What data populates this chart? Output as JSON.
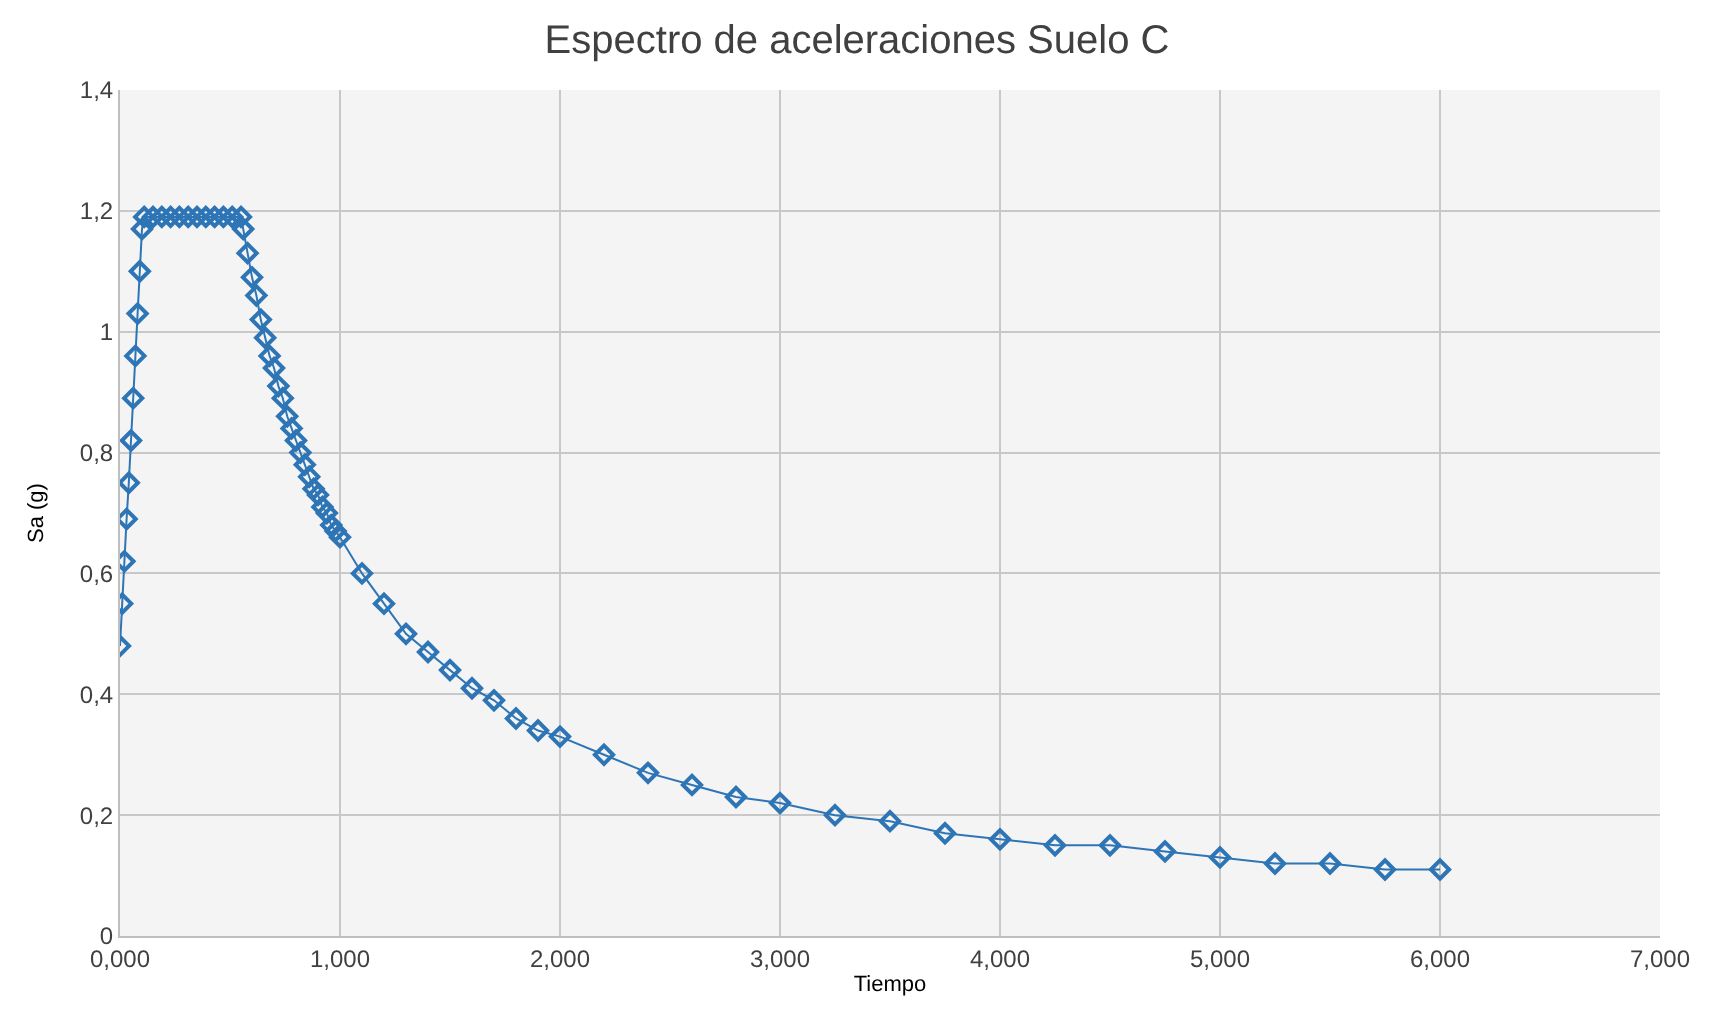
{
  "chart_data": {
    "type": "line",
    "title": "Espectro de aceleraciones Suelo C",
    "xlabel": "Tiempo",
    "ylabel": "Sa (g)",
    "x": [
      0,
      0.01,
      0.02,
      0.03,
      0.04,
      0.05,
      0.06,
      0.07,
      0.08,
      0.09,
      0.1,
      0.11,
      0.15,
      0.19,
      0.23,
      0.27,
      0.31,
      0.35,
      0.39,
      0.43,
      0.47,
      0.51,
      0.55,
      0.56,
      0.58,
      0.6,
      0.62,
      0.64,
      0.66,
      0.68,
      0.7,
      0.72,
      0.74,
      0.76,
      0.78,
      0.8,
      0.82,
      0.84,
      0.86,
      0.88,
      0.9,
      0.92,
      0.94,
      0.96,
      0.98,
      1.0,
      1.1,
      1.2,
      1.3,
      1.4,
      1.5,
      1.6,
      1.7,
      1.8,
      1.9,
      2.0,
      2.2,
      2.4,
      2.6,
      2.8,
      3.0,
      3.25,
      3.5,
      3.75,
      4.0,
      4.25,
      4.5,
      4.75,
      5.0,
      5.25,
      5.5,
      5.75,
      6.0
    ],
    "series": [
      {
        "color": "#2e75b6",
        "values": [
          0.48,
          0.55,
          0.62,
          0.69,
          0.75,
          0.82,
          0.89,
          0.96,
          1.03,
          1.1,
          1.17,
          1.19,
          1.19,
          1.19,
          1.19,
          1.19,
          1.19,
          1.19,
          1.19,
          1.19,
          1.19,
          1.19,
          1.19,
          1.17,
          1.13,
          1.09,
          1.06,
          1.02,
          0.99,
          0.96,
          0.94,
          0.91,
          0.89,
          0.86,
          0.84,
          0.82,
          0.8,
          0.78,
          0.76,
          0.74,
          0.73,
          0.71,
          0.7,
          0.68,
          0.67,
          0.66,
          0.6,
          0.55,
          0.5,
          0.47,
          0.44,
          0.41,
          0.39,
          0.36,
          0.34,
          0.33,
          0.3,
          0.27,
          0.25,
          0.23,
          0.22,
          0.2,
          0.19,
          0.17,
          0.16,
          0.15,
          0.15,
          0.14,
          0.13,
          0.12,
          0.12,
          0.11,
          0.11
        ]
      }
    ],
    "xlim": [
      0,
      7
    ],
    "xticks": [
      {
        "value": 0,
        "label": "0,000"
      },
      {
        "value": 1,
        "label": "1,000"
      },
      {
        "value": 2,
        "label": "2,000"
      },
      {
        "value": 3,
        "label": "3,000"
      },
      {
        "value": 4,
        "label": "4,000"
      },
      {
        "value": 5,
        "label": "5,000"
      },
      {
        "value": 6,
        "label": "6,000"
      },
      {
        "value": 7,
        "label": "7,000"
      }
    ],
    "ylim": [
      0,
      1.4
    ],
    "yticks": [
      0,
      {
        "value": 0.2,
        "label": "0,2"
      },
      {
        "value": 0.4,
        "label": "0,4"
      },
      {
        "value": 0.6,
        "label": "0,6"
      },
      {
        "value": 0.8,
        "label": "0,8"
      },
      1,
      {
        "value": 1.2,
        "label": "1,2"
      },
      {
        "value": 1.4,
        "label": "1,4"
      }
    ],
    "grid": true,
    "marker": "diamond",
    "legend": false
  }
}
